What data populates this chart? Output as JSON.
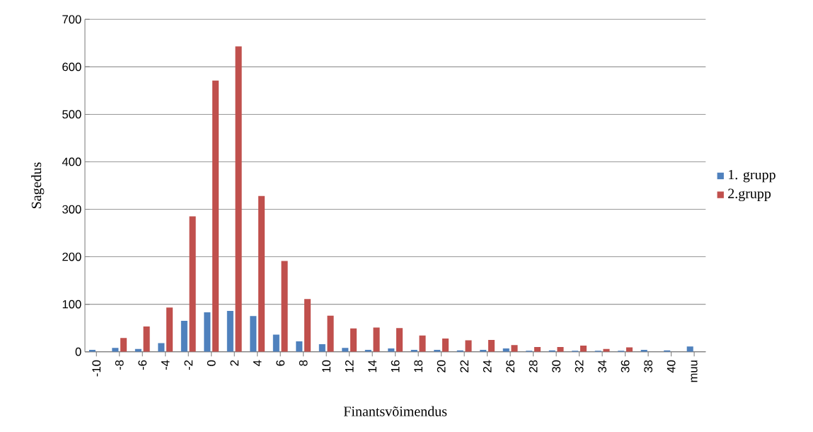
{
  "chart_data": {
    "type": "bar",
    "xlabel": "Finantsvõimendus",
    "ylabel": "Sagedus",
    "categories": [
      "-10",
      "-8",
      "-6",
      "-4",
      "-2",
      "0",
      "2",
      "4",
      "6",
      "8",
      "10",
      "12",
      "14",
      "16",
      "18",
      "20",
      "22",
      "24",
      "26",
      "28",
      "30",
      "32",
      "34",
      "36",
      "38",
      "40",
      "muu"
    ],
    "series": [
      {
        "name": "1. grupp",
        "color": "#4f81bd",
        "values": [
          4,
          8,
          6,
          18,
          65,
          83,
          86,
          75,
          36,
          22,
          16,
          8,
          4,
          7,
          4,
          4,
          3,
          4,
          7,
          2,
          3,
          2,
          2,
          2,
          4,
          3,
          11
        ]
      },
      {
        "name": "2.grupp",
        "color": "#c0504d",
        "values": [
          0,
          29,
          53,
          93,
          285,
          571,
          643,
          328,
          191,
          111,
          76,
          49,
          51,
          50,
          34,
          28,
          24,
          25,
          14,
          10,
          10,
          13,
          6,
          9,
          0,
          0,
          0
        ]
      }
    ],
    "ylim": [
      0,
      700
    ],
    "yticks": [
      0,
      100,
      200,
      300,
      400,
      500,
      600,
      700
    ],
    "grid": "y",
    "legend": "right"
  }
}
